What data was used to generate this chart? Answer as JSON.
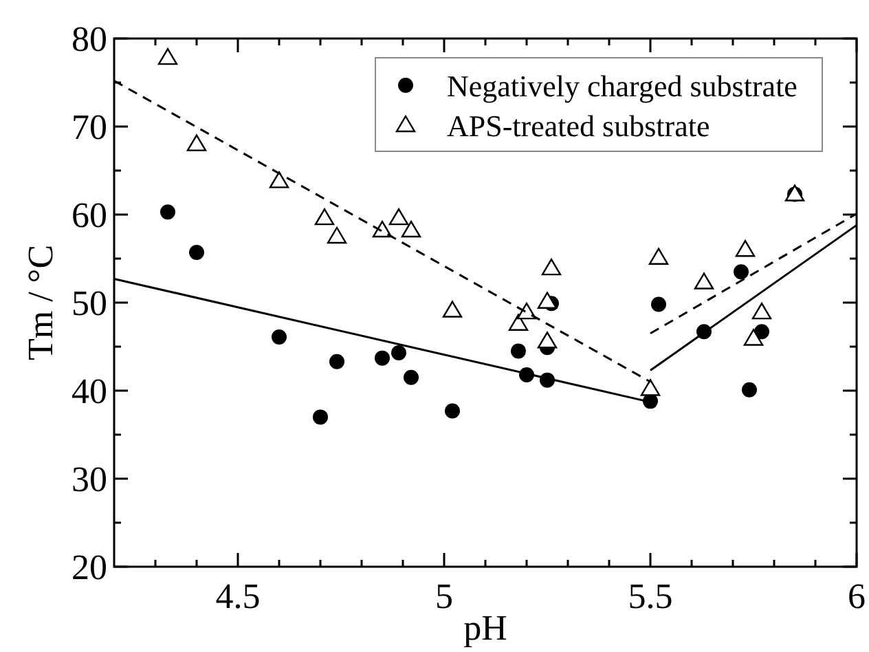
{
  "chart_data": {
    "type": "scatter",
    "xlabel": "pH",
    "ylabel": "Tm / °C",
    "xlim": [
      4.2,
      6
    ],
    "ylim": [
      20,
      80
    ],
    "xticks": [
      {
        "value": 4.3,
        "label": null
      },
      {
        "value": 4.4,
        "label": null
      },
      4.5,
      {
        "value": 4.6,
        "label": null
      },
      {
        "value": 4.7,
        "label": null
      },
      {
        "value": 4.8,
        "label": null
      },
      {
        "value": 4.9,
        "label": null
      },
      5,
      {
        "value": 5.1,
        "label": null
      },
      {
        "value": 5.2,
        "label": null
      },
      {
        "value": 5.3,
        "label": null
      },
      {
        "value": 5.4,
        "label": null
      },
      5.5,
      {
        "value": 5.6,
        "label": null
      },
      {
        "value": 5.7,
        "label": null
      },
      {
        "value": 5.8,
        "label": null
      },
      {
        "value": 5.9,
        "label": null
      },
      6
    ],
    "yticks": [
      20,
      {
        "value": 25,
        "label": null
      },
      30,
      {
        "value": 35,
        "label": null
      },
      40,
      {
        "value": 45,
        "label": null
      },
      50,
      {
        "value": 55,
        "label": null
      },
      60,
      {
        "value": 65,
        "label": null
      },
      70,
      {
        "value": 75,
        "label": null
      },
      80
    ],
    "grid": false,
    "legend": "top right",
    "series": [
      {
        "name": "Negatively charged substrate",
        "color": "#000000",
        "marker": "circle",
        "x": [
          4.33,
          4.4,
          4.6,
          4.7,
          4.74,
          4.85,
          4.89,
          4.92,
          5.02,
          5.18,
          5.2,
          5.25,
          5.26,
          5.25,
          5.5,
          5.52,
          5.63,
          5.72,
          5.74,
          5.77,
          5.85
        ],
        "values": [
          60.3,
          55.7,
          46.1,
          37,
          43.3,
          43.7,
          44.3,
          41.5,
          37.7,
          44.5,
          41.8,
          41.2,
          49.9,
          44.9,
          38.8,
          49.8,
          46.7,
          53.5,
          40.1,
          46.7,
          62.3
        ]
      },
      {
        "name": "APS-treated substrate",
        "color": "#000000",
        "marker": "triangle",
        "x": [
          4.33,
          4.4,
          4.6,
          4.71,
          4.74,
          4.85,
          4.89,
          4.92,
          5.02,
          5.18,
          5.2,
          5.25,
          5.26,
          5.25,
          5.5,
          5.52,
          5.63,
          5.73,
          5.77,
          5.75,
          5.85
        ],
        "values": [
          77.8,
          68,
          63.8,
          59.6,
          57.5,
          58.2,
          59.6,
          58.2,
          49.1,
          47.6,
          48.9,
          50.1,
          53.9,
          45.6,
          40.2,
          55.1,
          52.3,
          56,
          48.9,
          45.9,
          62.3
        ]
      },
      {
        "type": "line",
        "color": "#000000",
        "line_style": "solid",
        "x": [
          4.2,
          5.5
        ],
        "values": [
          52.7,
          38.7
        ]
      },
      {
        "type": "line",
        "color": "#000000",
        "line_style": "dashed",
        "x": [
          4.2,
          5.5
        ],
        "values": [
          75.2,
          41
        ]
      },
      {
        "type": "line",
        "color": "#000000",
        "line_style": "solid",
        "x": [
          5.5,
          6
        ],
        "values": [
          42.3,
          58.8
        ]
      },
      {
        "type": "line",
        "color": "#000000",
        "line_style": "dashed",
        "x": [
          5.5,
          6
        ],
        "values": [
          46.5,
          60.1
        ]
      }
    ]
  }
}
